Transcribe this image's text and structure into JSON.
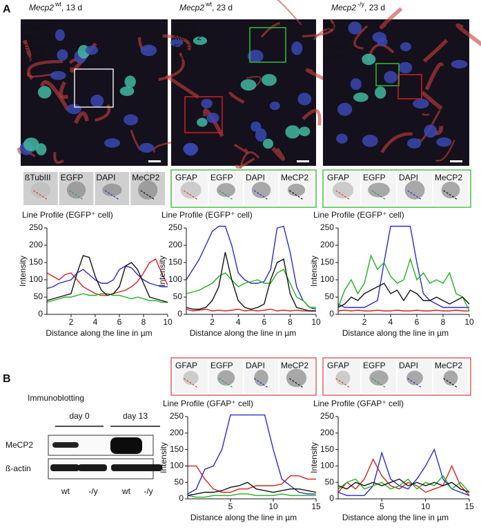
{
  "figure": {
    "label_a": "A",
    "label_b": "B",
    "immunoblotting": "Immunoblotting"
  },
  "images": [
    {
      "gene": "Mecp2",
      "genotype": "wt",
      "age": ", 13 d",
      "channels": [
        "ßTubIII",
        "MeCP2",
        "EGFP",
        "DAPI"
      ]
    },
    {
      "gene": "Mecp2",
      "genotype": "wt",
      "age": ", 23 d",
      "channels": [
        "GFAP",
        "MeCP2",
        "EGFP",
        "DAPI"
      ]
    },
    {
      "gene": "Mecp2",
      "genotype": "-/y",
      "age": ", 23 d",
      "channels": [
        "GFAP",
        "MeCP2",
        "EGFP",
        "DAPI"
      ]
    }
  ],
  "insets": [
    [
      "ßTubIII",
      "EGFP",
      "DAPI",
      "MeCP2"
    ],
    [
      "GFAP",
      "EGFP",
      "DAPI",
      "MeCP2"
    ],
    [
      "GFAP",
      "EGFP",
      "DAPI",
      "MeCP2"
    ],
    [
      "GFAP",
      "EGFP",
      "DAPI",
      "MeCP2"
    ],
    [
      "GFAP",
      "EGFP",
      "DAPI",
      "MeCP2"
    ]
  ],
  "blot": {
    "groups": [
      "day 0",
      "day 13"
    ],
    "rows": [
      "MeCP2",
      "ß-actin"
    ],
    "lanes": [
      "wt",
      "-/y",
      "wt",
      "-/y"
    ]
  },
  "chart_data": [
    {
      "type": "line",
      "title": "Line Profile (EGFP⁺ cell)",
      "x_label": "Distance along the line in µm",
      "y_label": "Intensity",
      "x": [
        0,
        0.5,
        1,
        1.5,
        2,
        2.5,
        3,
        3.5,
        4,
        4.5,
        5,
        5.5,
        6,
        6.5,
        7,
        7.5,
        8,
        8.5,
        9,
        9.5,
        10
      ],
      "xlim": [
        0,
        10
      ],
      "xticks": [
        2,
        4,
        6,
        8,
        10
      ],
      "ylim": [
        0,
        250
      ],
      "yticks": [
        0,
        50,
        100,
        150,
        200,
        250
      ],
      "series": [
        {
          "color": "#d42020",
          "values": [
            120,
            110,
            100,
            115,
            120,
            100,
            80,
            70,
            60,
            55,
            55,
            60,
            65,
            70,
            80,
            95,
            120,
            150,
            160,
            120,
            85
          ]
        },
        {
          "color": "#2a2ad0",
          "values": [
            75,
            80,
            90,
            95,
            100,
            120,
            130,
            115,
            100,
            90,
            90,
            100,
            130,
            140,
            135,
            115,
            100,
            90,
            85,
            80,
            80
          ]
        },
        {
          "color": "#20b020",
          "values": [
            35,
            40,
            45,
            50,
            50,
            55,
            60,
            55,
            55,
            60,
            60,
            55,
            55,
            50,
            45,
            50,
            45,
            40,
            40,
            35,
            35
          ]
        },
        {
          "color": "#111111",
          "values": [
            40,
            45,
            50,
            55,
            60,
            120,
            170,
            165,
            110,
            70,
            55,
            60,
            80,
            140,
            150,
            130,
            90,
            50,
            45,
            40,
            35
          ]
        }
      ]
    },
    {
      "type": "line",
      "title": "Line Profile (EGFP⁺ cell)",
      "x_label": "Distance along the line in µm",
      "y_label": "Intensity",
      "x": [
        0,
        0.5,
        1,
        1.5,
        2,
        2.5,
        3,
        3.5,
        4,
        4.5,
        5,
        5.5,
        6,
        6.5,
        7,
        7.5,
        8,
        8.5,
        9,
        9.5,
        10
      ],
      "xlim": [
        0,
        10
      ],
      "xticks": [
        2,
        4,
        6,
        8,
        10
      ],
      "ylim": [
        0,
        250
      ],
      "yticks": [
        0,
        50,
        100,
        150,
        200,
        250
      ],
      "series": [
        {
          "color": "#d42020",
          "values": [
            15,
            10,
            12,
            15,
            10,
            12,
            10,
            12,
            15,
            10,
            12,
            10,
            12,
            15,
            10,
            12,
            10,
            12,
            10,
            10,
            10
          ]
        },
        {
          "color": "#2a2ad0",
          "values": [
            100,
            130,
            160,
            200,
            240,
            255,
            255,
            200,
            120,
            100,
            90,
            90,
            95,
            130,
            250,
            255,
            180,
            80,
            40,
            20,
            15
          ]
        },
        {
          "color": "#20b020",
          "values": [
            60,
            65,
            70,
            80,
            90,
            110,
            120,
            100,
            80,
            90,
            95,
            100,
            90,
            90,
            120,
            130,
            90,
            50,
            40,
            20,
            20
          ]
        },
        {
          "color": "#111111",
          "values": [
            20,
            15,
            15,
            20,
            40,
            80,
            180,
            100,
            40,
            20,
            15,
            20,
            30,
            100,
            150,
            160,
            60,
            20,
            15,
            10,
            10
          ]
        }
      ]
    },
    {
      "type": "line",
      "title": "Line Profile (EGFP⁺ cell)",
      "x_label": "Distance along the line in µm",
      "y_label": "Intensity",
      "x": [
        0,
        0.5,
        1,
        1.5,
        2,
        2.5,
        3,
        3.5,
        4,
        4.5,
        5,
        5.5,
        6,
        6.5,
        7,
        7.5,
        8,
        8.5,
        9,
        9.5,
        10
      ],
      "xlim": [
        0,
        10
      ],
      "xticks": [
        2,
        4,
        6,
        8,
        10
      ],
      "ylim": [
        0,
        250
      ],
      "yticks": [
        0,
        50,
        100,
        150,
        200,
        250
      ],
      "series": [
        {
          "color": "#d42020",
          "values": [
            10,
            12,
            10,
            12,
            10,
            10,
            12,
            10,
            10,
            12,
            10,
            10,
            12,
            10,
            10,
            12,
            10,
            10,
            12,
            10,
            10
          ]
        },
        {
          "color": "#2a2ad0",
          "values": [
            30,
            20,
            20,
            20,
            20,
            30,
            40,
            150,
            255,
            255,
            255,
            255,
            150,
            60,
            40,
            30,
            20,
            20,
            20,
            20,
            20
          ]
        },
        {
          "color": "#20b020",
          "values": [
            20,
            70,
            100,
            60,
            90,
            170,
            130,
            150,
            110,
            90,
            100,
            160,
            100,
            120,
            90,
            100,
            90,
            120,
            60,
            50,
            10
          ]
        },
        {
          "color": "#111111",
          "values": [
            20,
            30,
            50,
            40,
            60,
            70,
            80,
            90,
            60,
            70,
            40,
            70,
            60,
            40,
            40,
            50,
            40,
            30,
            40,
            50,
            30
          ]
        }
      ]
    },
    {
      "type": "line",
      "title": "Line Profile (GFAP⁺ cell)",
      "x_label": "Distance along the line in µm",
      "y_label": "Intensity",
      "x": [
        0,
        1,
        2,
        3,
        4,
        5,
        6,
        7,
        8,
        9,
        10,
        11,
        12,
        13,
        14,
        15
      ],
      "xlim": [
        0,
        15
      ],
      "xticks": [
        5,
        10,
        15
      ],
      "ylim": [
        0,
        250
      ],
      "yticks": [
        0,
        50,
        100,
        150,
        200,
        250
      ],
      "series": [
        {
          "color": "#d42020",
          "values": [
            100,
            100,
            60,
            30,
            20,
            20,
            30,
            30,
            40,
            40,
            40,
            45,
            70,
            70,
            60,
            60
          ]
        },
        {
          "color": "#2a2ad0",
          "values": [
            15,
            30,
            90,
            100,
            150,
            255,
            255,
            255,
            255,
            255,
            150,
            60,
            40,
            20,
            15,
            15
          ]
        },
        {
          "color": "#20b020",
          "values": [
            10,
            5,
            5,
            10,
            10,
            10,
            15,
            15,
            10,
            10,
            10,
            15,
            10,
            10,
            10,
            10
          ]
        },
        {
          "color": "#111111",
          "values": [
            10,
            15,
            20,
            20,
            25,
            35,
            40,
            50,
            30,
            25,
            20,
            25,
            30,
            30,
            25,
            20
          ]
        }
      ]
    },
    {
      "type": "line",
      "title": "Line Profile (GFAP⁺ cell)",
      "x_label": "Distance along the line in µm",
      "y_label": "Intensity",
      "x": [
        0,
        1,
        2,
        3,
        4,
        5,
        6,
        7,
        8,
        9,
        10,
        11,
        12,
        13,
        14,
        15
      ],
      "xlim": [
        0,
        15
      ],
      "xticks": [
        5,
        10,
        15
      ],
      "ylim": [
        0,
        250
      ],
      "yticks": [
        0,
        50,
        100,
        150,
        200,
        250
      ],
      "series": [
        {
          "color": "#d42020",
          "values": [
            20,
            50,
            30,
            60,
            120,
            70,
            40,
            30,
            50,
            40,
            20,
            30,
            40,
            100,
            40,
            10
          ]
        },
        {
          "color": "#2a2ad0",
          "values": [
            20,
            10,
            10,
            10,
            40,
            140,
            60,
            40,
            30,
            60,
            100,
            150,
            60,
            30,
            20,
            10
          ]
        },
        {
          "color": "#20b020",
          "values": [
            30,
            50,
            60,
            30,
            40,
            50,
            30,
            40,
            60,
            30,
            50,
            40,
            70,
            30,
            50,
            20
          ]
        },
        {
          "color": "#111111",
          "values": [
            40,
            30,
            50,
            40,
            50,
            40,
            50,
            60,
            40,
            50,
            40,
            50,
            40,
            50,
            30,
            20
          ]
        }
      ]
    }
  ]
}
